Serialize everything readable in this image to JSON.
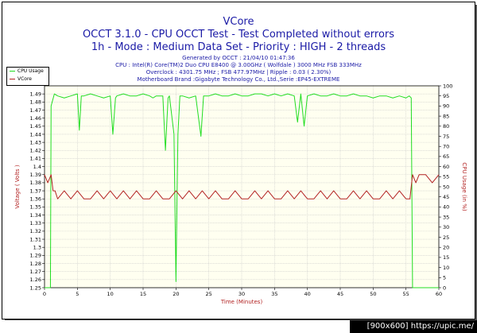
{
  "chart_data": {
    "type": "line",
    "title": "VCore",
    "subtitle_lines": [
      "OCCT 3.1.0 - CPU OCCT Test - Test Completed without errors",
      "1h - Mode : Medium Data Set - Priority : HIGH - 2 threads"
    ],
    "info_lines": [
      "Generated by OCCT : 21/04/10 01:47:36",
      "CPU : Intel(R) Core(TM)2 Duo CPU E8400 @ 3.00GHz ( Wolfdale ) 3000 MHz FSB 333MHz",
      "Overclock : 4301.75 MHz ; FSB 477.97MHz | Ripple : 0.03 ( 2.30%)",
      "Motherboard Brand :Gigabyte Technology Co., Ltd.,Serie :EP45-EXTREME"
    ],
    "xlabel": "Time (Minutes)",
    "ylabel_left": "Voltage ( Volts )",
    "ylabel_right": "CPU Usage (in %)",
    "xlim": [
      0,
      60
    ],
    "ylim_left": [
      1.25,
      1.5
    ],
    "ylim_right": [
      0,
      100
    ],
    "x_ticks": [
      0,
      5,
      10,
      15,
      20,
      25,
      30,
      35,
      40,
      45,
      50,
      55,
      60
    ],
    "y_ticks_left": [
      1.25,
      1.26,
      1.27,
      1.28,
      1.29,
      1.3,
      1.31,
      1.32,
      1.33,
      1.34,
      1.35,
      1.36,
      1.37,
      1.38,
      1.39,
      1.4,
      1.41,
      1.42,
      1.43,
      1.44,
      1.45,
      1.46,
      1.47,
      1.48,
      1.49
    ],
    "y_ticks_right": [
      0,
      5,
      10,
      15,
      20,
      25,
      30,
      35,
      40,
      45,
      50,
      55,
      60,
      65,
      70,
      75,
      80,
      85,
      90,
      95,
      100
    ],
    "grid": true,
    "legend_position": "top-left",
    "series": [
      {
        "name": "CPU Usage",
        "axis": "right",
        "color": "#22dd22",
        "x": [
          0,
          0.9,
          1,
          1.5,
          2,
          3,
          4,
          5,
          5.3,
          5.6,
          6,
          7,
          8,
          9,
          10,
          10.4,
          10.8,
          11,
          12,
          13,
          14,
          15,
          16,
          16.5,
          17,
          18,
          18.4,
          18.8,
          19,
          19.7,
          20,
          20.3,
          20.6,
          21,
          22,
          23,
          23.8,
          24.2,
          25,
          26,
          27,
          28,
          29,
          30,
          31,
          32,
          33,
          34,
          35,
          36,
          37,
          38,
          38.5,
          39,
          39.5,
          40,
          41,
          42,
          43,
          44,
          45,
          46,
          47,
          48,
          49,
          50,
          51,
          52,
          53,
          54,
          55,
          55.5,
          55.8,
          56,
          60
        ],
        "values": [
          0,
          0,
          90,
          96,
          95,
          94,
          95,
          96,
          78,
          95,
          95,
          96,
          95,
          94,
          95,
          76,
          94,
          95,
          96,
          95,
          95,
          96,
          95,
          94,
          95,
          95,
          68,
          94,
          95,
          76,
          3,
          76,
          95,
          95,
          94,
          95,
          75,
          95,
          95,
          96,
          95,
          95,
          96,
          95,
          95,
          96,
          96,
          95,
          96,
          95,
          96,
          95,
          82,
          96,
          80,
          95,
          96,
          95,
          95,
          96,
          95,
          95,
          96,
          95,
          95,
          94,
          95,
          95,
          94,
          95,
          94,
          95,
          94,
          0,
          0
        ]
      },
      {
        "name": "VCore",
        "axis": "left",
        "color": "#b22222",
        "x": [
          0,
          0.5,
          1,
          1.3,
          1.6,
          2,
          3,
          4,
          5,
          6,
          7,
          8,
          9,
          10,
          11,
          12,
          13,
          14,
          15,
          16,
          17,
          18,
          19,
          20,
          21,
          22,
          23,
          24,
          25,
          26,
          27,
          28,
          29,
          30,
          31,
          32,
          33,
          34,
          35,
          36,
          37,
          38,
          39,
          40,
          41,
          42,
          43,
          44,
          45,
          46,
          47,
          48,
          49,
          50,
          51,
          52,
          53,
          54,
          55,
          55.6,
          56,
          56.5,
          57,
          58,
          59,
          60
        ],
        "values": [
          1.39,
          1.38,
          1.39,
          1.37,
          1.37,
          1.36,
          1.37,
          1.36,
          1.37,
          1.36,
          1.36,
          1.37,
          1.36,
          1.37,
          1.36,
          1.37,
          1.36,
          1.37,
          1.36,
          1.36,
          1.37,
          1.36,
          1.36,
          1.37,
          1.36,
          1.37,
          1.36,
          1.37,
          1.36,
          1.37,
          1.36,
          1.36,
          1.37,
          1.36,
          1.36,
          1.37,
          1.36,
          1.37,
          1.36,
          1.36,
          1.37,
          1.36,
          1.37,
          1.36,
          1.36,
          1.37,
          1.36,
          1.37,
          1.36,
          1.36,
          1.37,
          1.36,
          1.37,
          1.36,
          1.36,
          1.37,
          1.36,
          1.37,
          1.36,
          1.36,
          1.39,
          1.38,
          1.39,
          1.39,
          1.38,
          1.39
        ]
      }
    ]
  },
  "footer": "[900x600] https://upic.me/"
}
